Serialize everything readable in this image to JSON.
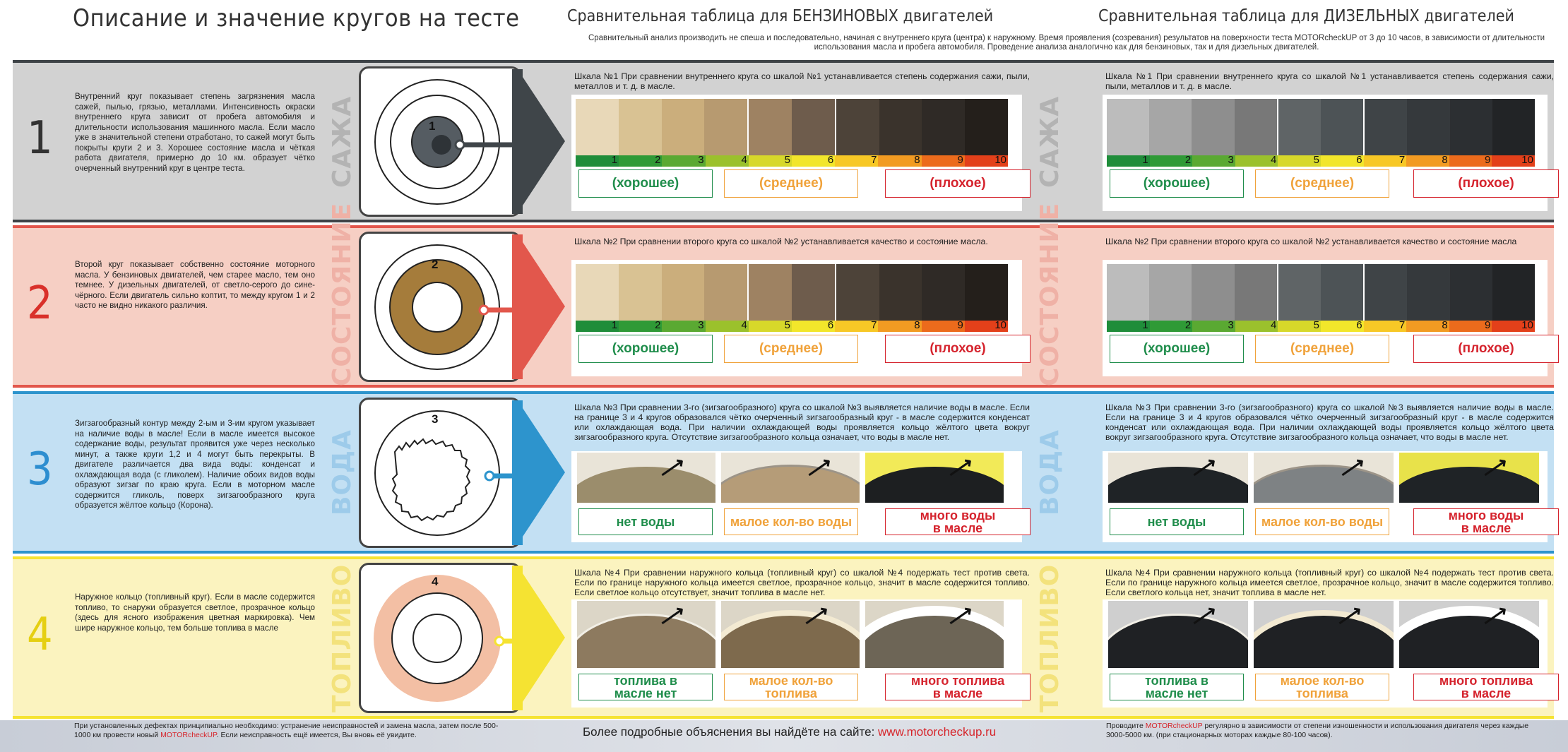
{
  "header": {
    "main_title": "Описание и значение кругов на тесте",
    "petrol_title": "Сравнительная таблица для  БЕНЗИНОВЫХ двигателей",
    "diesel_title": "Сравнительная таблица для  ДИЗЕЛЬНЫХ двигателей",
    "note": "Сравнительный анализ производить не спеша и последовательно, начиная с внутреннего круга (центра) к наружному. Время проявления (созревания) результатов на поверхности теста MOTORcheckUP от 3 до 10 часов, в зависимости от длительности использования масла и пробега автомобиля. Проведение анализа аналогично как для бензиновых, так и для дизельных двигателей."
  },
  "sections": [
    {
      "number": "1",
      "label": "САЖА",
      "circle_number": "1",
      "description": "Внутренний круг показывает степень загрязнения масла сажей, пылью, грязью, металлами. Интенсивность окраски внутреннего круга зависит от пробега автомобиля и длительности использования машинного масла. Если масло уже в значительной степени отработано, то сажей могут быть покрыты круги 2 и 3. Хорошее состояние масла и чёткая работа двигателя, примерно до 10 км. образует чётко очерченный внутренний круг в центре теста.",
      "petrol_scale": "Шкала №1 При сравнении внутреннего круга со шкалой №1 устанавливается степень содержания сажи, пыли, металлов и т. д. в масле.",
      "diesel_scale": "Шкала №1 При сравнении внутреннего круга со шкалой №1 устанавливается степень содержания сажи, пыли, металлов и т. д. в масле.",
      "labels": [
        "(хорошее)",
        "(среднее)",
        "(плохое)"
      ],
      "colors": {
        "band": "#d2d2d2",
        "accent": "#3f4549",
        "number": "#333333",
        "vertical": "#b3b3b3"
      }
    },
    {
      "number": "2",
      "label": "СОСТОЯНИЕ",
      "circle_number": "2",
      "description": "Второй круг показывает собственно состояние моторного масла. У бензиновых двигателей, чем старее масло, тем оно темнее. У дизельных двигателей, от светло-серого до сине-чёрного. Если двигатель сильно коптит, то между кругом 1 и 2 часто не видно никакого различия.",
      "petrol_scale": "Шкала №2 При сравнении второго круга со шкалой №2 устанавливается качество и состояние масла.",
      "diesel_scale": "Шкала №2 При сравнении второго круга со шкалой №2 устанавливается качество и состояние масла",
      "labels": [
        "(хорошее)",
        "(среднее)",
        "(плохое)"
      ],
      "colors": {
        "band": "#f6cfc4",
        "accent": "#e2574c",
        "number": "#d9302a",
        "vertical": "#efb1a6"
      }
    },
    {
      "number": "3",
      "label": "ВОДА",
      "circle_number": "3",
      "description": "Зигзагообразный контур между 2-ым и 3-им кругом указывает на наличие воды в масле! Если в масле имеется высокое содержание воды, результат проявится уже через несколько минут, а также круги 1,2 и 4 могут быть перекрыты. В двигателе различается два вида воды: конденсат и охлаждающая вода (с гликолем). Наличие обоих видов воды образуют зигзаг по краю круга. Если в моторном масле содержится гликоль, поверх зигзагообразного круга образуется жёлтое кольцо (Корона).",
      "petrol_scale": "Шкала №3 При сравнении 3-го (зигзагообразного) круга со шкалой №3 выявляется наличие воды в масле. Если на границе 3 и 4 кругов образовался чётко очерченный зигзагообразный круг - в масле содержится конденсат или охлаждающая вода. При наличии охлаждающей воды проявляется кольцо жёлтого цвета вокруг зигзагообразного круга. Отсутствие зигзагообразного кольца означает, что воды в масле нет.",
      "diesel_scale": "Шкала №3 При сравнении 3-го (зигзагообразного) круга со шкалой №3 выявляется наличие воды в масле. Если на границе 3 и 4 кругов образовался чётко очерченный зигзагообразный круг - в масле содержится конденсат или охлаждающая вода. При наличии охлаждающей воды проявляется кольцо жёлтого цвета вокруг зигзагообразного круга. Отсутствие зигзагообразного кольца означает, что воды в масле нет.",
      "labels": [
        "нет воды",
        "малое кол-во воды",
        "много воды\nв масле"
      ],
      "colors": {
        "band": "#c3e0f3",
        "accent": "#2d94cd",
        "number": "#2d8ed0",
        "vertical": "#9dcbea"
      }
    },
    {
      "number": "4",
      "label": "ТОПЛИВО",
      "circle_number": "4",
      "description": "Наружное кольцо (топливный круг). Если в масле содержится топливо, то снаружи образуется светлое, прозрачное кольцо (здесь для ясного изображения цветная маркировка). Чем шире наружное кольцо, тем больше топлива в масле",
      "petrol_scale": "Шкала №4  При сравнении наружного кольца (топливный круг) со шкалой №4 подержать тест против света. Если по границе наружного кольца имеется светлое, прозрачное кольцо, значит в масле содержится топливо. Если светлое кольцо отсутствует, значит топлива в масле нет.",
      "diesel_scale": "Шкала №4  При сравнении наружного кольца (топливный круг) со шкалой №4 подержать тест против света. Если по границе наружного кольца имеется светлое, прозрачное кольцо, значит в масле содержится топливо. Если светлого кольца нет, значит топлива в масле нет.",
      "labels": [
        "топлива в\nмасле нет",
        "малое кол-во\nтоплива",
        "много топлива\nв масле"
      ],
      "colors": {
        "band": "#fbf3bf",
        "accent": "#f5e332",
        "number": "#e5cf12",
        "vertical": "#f3e27c"
      }
    }
  ],
  "scale_numbers": [
    "1",
    "2",
    "3",
    "4",
    "5",
    "6",
    "7",
    "8",
    "9",
    "10"
  ],
  "label_colors": [
    "#1f8d4b",
    "#f0a23a",
    "#d5232d"
  ],
  "footer": {
    "left_1": "При установленных дефектах принципиально необходимо: устранение неисправностей и замена масла, затем после 500-1000 км провести новый ",
    "left_brand": "MOTORcheckUP",
    "left_2": ". Если неисправность ещё имеется, Вы вновь её увидите.",
    "center_1": "Более подробные объяснения вы найдёте на сайте: ",
    "center_link": "www.motorcheckup.ru",
    "right_1": "Проводите ",
    "right_brand": "MOTORcheckUP",
    "right_2": " регулярно в зависимости от степени изношенности и использования двигателя через каждые 3000-5000 км. (при стационарных моторах каждые 80-100 часов)."
  }
}
